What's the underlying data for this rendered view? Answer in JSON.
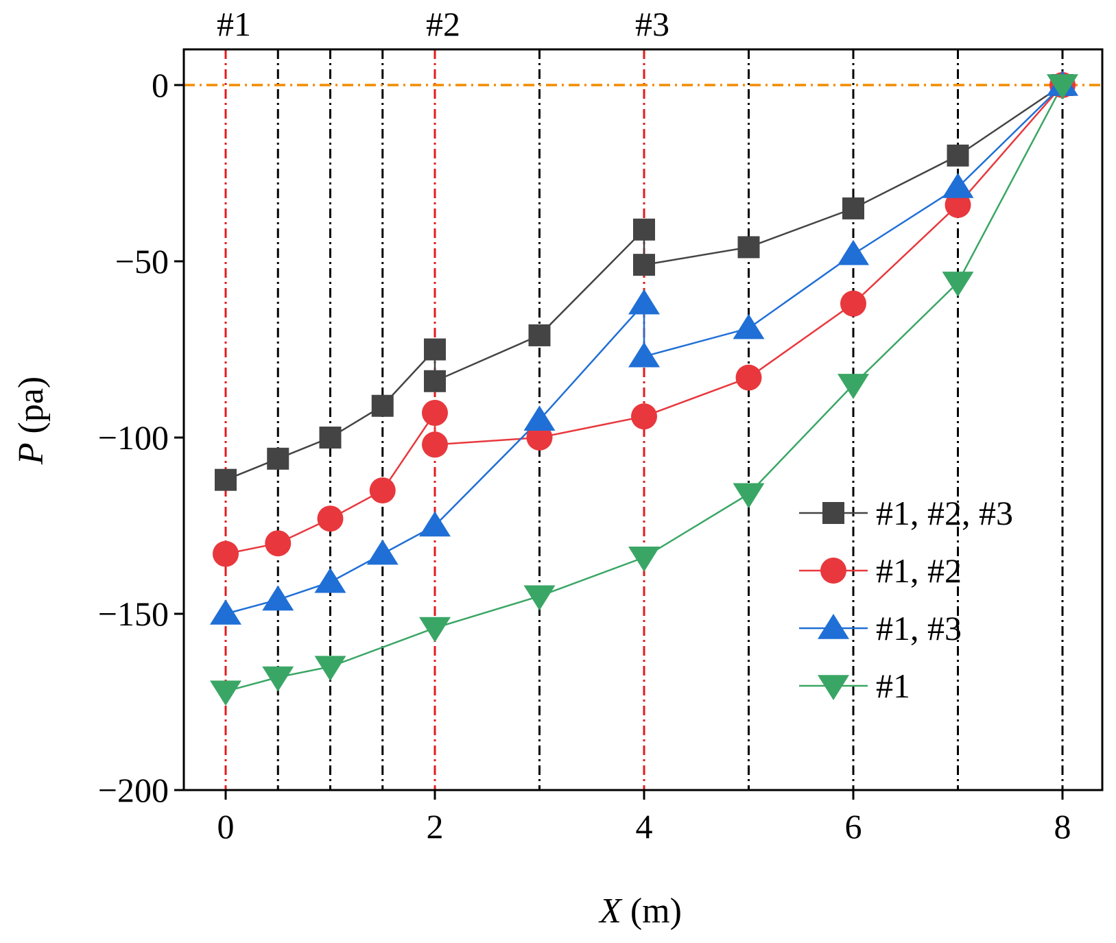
{
  "chart_data": {
    "type": "line",
    "title": "",
    "xlabel": {
      "italic": "X",
      "unit": " (m)"
    },
    "ylabel": {
      "italic": "P",
      "unit": " (pa)"
    },
    "xlim": [
      -0.4,
      8.4
    ],
    "ylim": [
      -200,
      10
    ],
    "xticks": [
      0,
      2,
      4,
      6,
      8
    ],
    "xtick_labels": [
      "0",
      "2",
      "4",
      "6",
      "8"
    ],
    "yticks": [
      0,
      -50,
      -100,
      -150,
      -200
    ],
    "ytick_labels": [
      "0",
      "−50",
      "−100",
      "−150",
      "−200"
    ],
    "reference_lines": {
      "horizontal": [
        {
          "y": 0,
          "color": "#f28c00",
          "style": "dash-dot"
        }
      ],
      "vertical_black": [
        0.5,
        1,
        1.5,
        3,
        5,
        6,
        7,
        8
      ],
      "vertical_red": [
        0,
        2,
        4
      ],
      "black_color": "#000000",
      "red_color": "#e41a1c"
    },
    "top_labels": [
      {
        "x": 0,
        "text": "#1"
      },
      {
        "x": 2,
        "text": "#2"
      },
      {
        "x": 4,
        "text": "#3"
      }
    ],
    "legend_position": "center-right",
    "series": [
      {
        "name": "#1, #2, #3",
        "marker": "square",
        "color": "#444444",
        "x": [
          0,
          0.5,
          1,
          1.5,
          2,
          2,
          3,
          4,
          4,
          5,
          6,
          7,
          8
        ],
        "y": [
          -112,
          -106,
          -100,
          -91,
          -75,
          -84,
          -71,
          -41,
          -51,
          -46,
          -35,
          -20,
          0
        ]
      },
      {
        "name": "#1, #2",
        "marker": "circle",
        "color": "#e8383d",
        "x": [
          0,
          0.5,
          1,
          1.5,
          2,
          2,
          3,
          4,
          5,
          6,
          7,
          8
        ],
        "y": [
          -133,
          -130,
          -123,
          -115,
          -93,
          -102,
          -100,
          -94,
          -83,
          -62,
          -34,
          0
        ]
      },
      {
        "name": "#1, #3",
        "marker": "triangle-up",
        "color": "#1f6fd6",
        "x": [
          0,
          0.5,
          1,
          1.5,
          2,
          3,
          4,
          4,
          5,
          6,
          7,
          8
        ],
        "y": [
          -150,
          -146,
          -141,
          -133,
          -125,
          -95,
          -62,
          -77,
          -69,
          -48,
          -29,
          0
        ]
      },
      {
        "name": "#1",
        "marker": "triangle-down",
        "color": "#3aa665",
        "x": [
          0,
          0.5,
          1,
          2,
          3,
          4,
          5,
          6,
          7,
          8
        ],
        "y": [
          -172,
          -168,
          -165,
          -154,
          -145,
          -134,
          -116,
          -85,
          -56,
          0
        ]
      }
    ]
  }
}
